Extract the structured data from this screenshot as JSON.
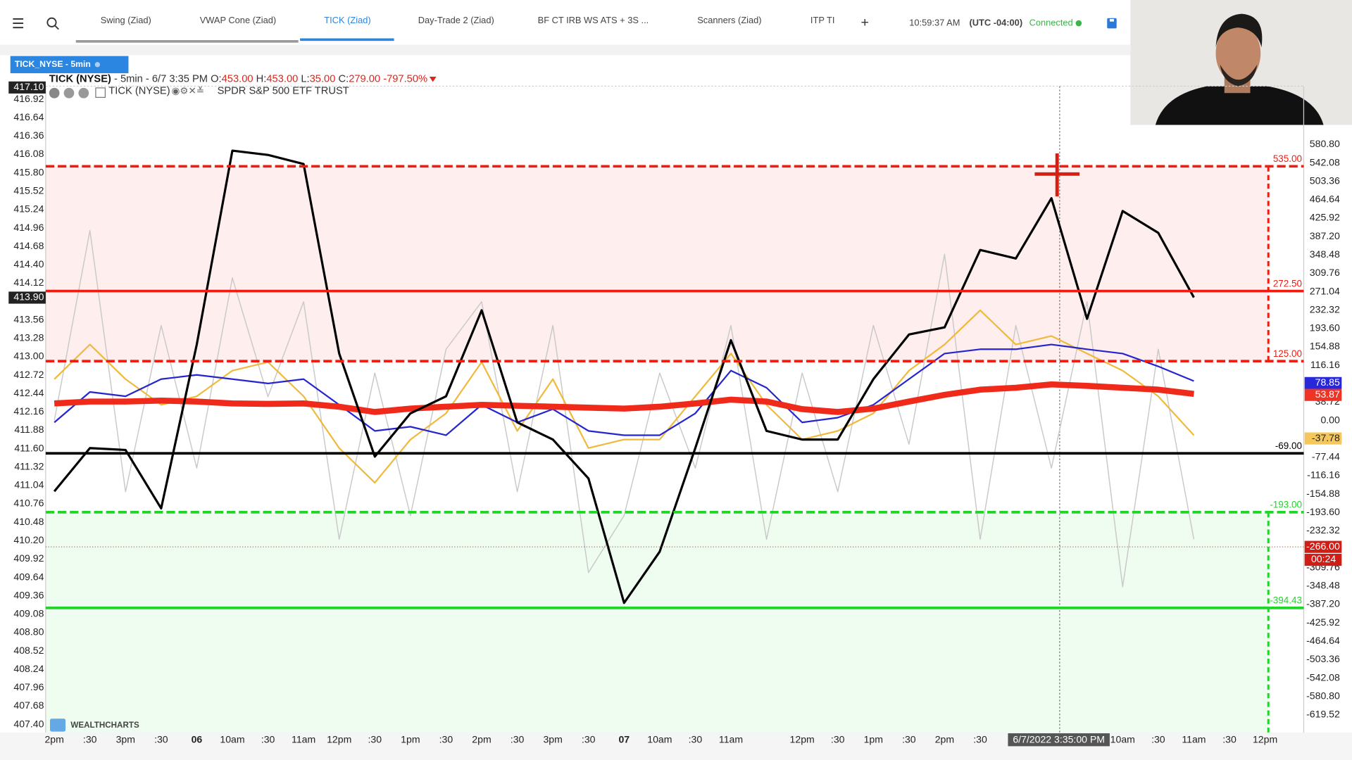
{
  "header": {
    "tabs": [
      "Swing (Ziad)",
      "VWAP Cone (Ziad)",
      "TICK (Ziad)",
      "Day-Trade 2 (Ziad)",
      "BF CT IRB WS ATS + 3S ...",
      "Scanners (Ziad)",
      "ITP TI"
    ],
    "active_tab": 2,
    "time": "10:59:37 AM",
    "timezone": "(UTC -04:00)",
    "status": "Connected"
  },
  "panel": {
    "tag": "TICK_NYSE - 5min",
    "symbol": "TICK (NYSE)",
    "info": " - 5min - 6/7 3:35 PM",
    "ohlc": [
      {
        "label": " O:",
        "value": "453.00"
      },
      {
        "label": " H:",
        "value": "453.00"
      },
      {
        "label": " L:",
        "value": "35.00"
      },
      {
        "label": " C:",
        "value": "279.00"
      }
    ],
    "change": " -797.50%",
    "indicator": "TICK (NYSE)",
    "overlay": "SPDR S&P 500 ETF TRUST",
    "watermark": "WEALTHCHARTS",
    "crosshair_label": "6/7/2022 3:35:00 PM",
    "countdown": "00:24"
  },
  "chart_data": {
    "type": "line",
    "categories": [
      "2pm",
      ":30",
      "3pm",
      ":30",
      "06",
      "10am",
      ":30",
      "11am",
      "12pm",
      ":30",
      "1pm",
      ":30",
      "2pm",
      ":30",
      "3pm",
      ":30",
      "07",
      "10am",
      ":30",
      "11am",
      null,
      "12pm",
      ":30",
      "1pm",
      ":30",
      "2pm",
      ":30",
      null,
      null,
      null,
      "10am",
      ":30",
      "11am",
      ":30",
      "12pm"
    ],
    "ylim": [
      407.28,
      417.12
    ],
    "yticks": [
      416.92,
      416.64,
      416.36,
      {
        "value": 416.08,
        "label": "416.08"
      },
      {
        "value": 415.8,
        "label": "415.80"
      },
      415.52,
      415.24,
      414.96,
      414.68,
      {
        "value": 414.4,
        "label": "414.40"
      },
      414.12,
      413.56,
      413.28,
      {
        "value": 413,
        "label": "413.00"
      },
      412.72,
      412.44,
      412.16,
      411.88,
      {
        "value": 411.6,
        "label": "411.60"
      },
      411.32,
      411.04,
      410.76,
      410.48,
      {
        "value": 410.2,
        "label": "410.20"
      },
      409.92,
      409.64,
      409.36,
      409.08,
      {
        "value": 408.8,
        "label": "408.80"
      },
      408.52,
      408.24,
      407.96,
      407.68,
      {
        "value": 407.4,
        "label": "407.40"
      }
    ],
    "y2lim": [
      -656.5,
      703.7
    ],
    "y2ticks": [
      {
        "value": 580.8,
        "label": "580.80"
      },
      542.08,
      503.36,
      464.64,
      425.92,
      {
        "value": 387.2,
        "label": "387.20"
      },
      348.48,
      309.76,
      271.04,
      232.32,
      {
        "value": 193.6,
        "label": "193.60"
      },
      154.88,
      116.16,
      38.72,
      {
        "value": 0,
        "label": "0.00"
      },
      -77.44,
      -116.16,
      -154.88,
      {
        "value": -193.6,
        "label": "-193.60"
      },
      -232.32,
      -309.76,
      -348.48,
      {
        "value": -387.2,
        "label": "-387.20"
      },
      -425.92,
      -464.64,
      -503.36,
      -542.08,
      {
        "value": -580.8,
        "label": "-580.80"
      },
      -619.52
    ],
    "levels": [
      {
        "value": 535,
        "label": "535.00",
        "color": "#f01c10",
        "dashed": true
      },
      {
        "value": 272.5,
        "label": "272.50",
        "color": "#f01c10",
        "dashed": false
      },
      {
        "value": 125,
        "label": "125.00",
        "color": "#f01c10",
        "dashed": true
      },
      {
        "value": -69,
        "label": "-69.00",
        "color": "#000000",
        "dashed": false
      },
      {
        "value": -193,
        "label": "-193.00",
        "color": "#22d42a",
        "dashed": true
      },
      {
        "value": -394.43,
        "label": "-394.43",
        "color": "#22d42a",
        "dashed": false
      }
    ],
    "left_markers": [
      {
        "value": 417.1,
        "label": "417.10"
      },
      {
        "value": 413.9,
        "label": "413.90"
      }
    ],
    "right_markers": [
      {
        "value": 78.85,
        "label": "78.85",
        "color": "#2828d8",
        "text_color": "#ffffff"
      },
      {
        "value": 53.87,
        "label": "53.87",
        "color": "#ef3324",
        "text_color": "#ffffff"
      },
      {
        "value": -37.78,
        "label": "-37.78",
        "color": "#f5c75a",
        "text_color": "#222222"
      },
      {
        "value": -266,
        "label": "-266.00",
        "color": "#d01e16",
        "text_color": "#ffffff"
      }
    ],
    "series": [
      {
        "color": "#c9c9c9",
        "line_width": 1.2,
        "axis": "y2",
        "values": [
          0,
          400,
          -150,
          200,
          -100,
          300,
          50,
          250,
          -250,
          100,
          -200,
          150,
          250,
          -150,
          200,
          -320,
          -200,
          100,
          -100,
          200,
          -250,
          100,
          -150,
          200,
          -50,
          350,
          -250,
          200,
          -100,
          250,
          -350,
          150,
          -250,
          null,
          null
        ]
      },
      {
        "color": "#f0b93a",
        "line_width": 1.8,
        "axis": "y2",
        "values": [
          87,
          160,
          87,
          33,
          51,
          105,
          123,
          51,
          -58,
          -131,
          -40,
          15,
          123,
          -22,
          87,
          -58,
          -40,
          -40,
          51,
          141,
          33,
          -40,
          -22,
          15,
          105,
          160,
          232,
          160,
          178,
          141,
          105,
          51,
          -31,
          null,
          null
        ]
      },
      {
        "color": "#2525d0",
        "line_width": 1.8,
        "axis": "y2",
        "values": [
          -4,
          60,
          51,
          87,
          96,
          87,
          78,
          87,
          33,
          -22,
          -13,
          -31,
          33,
          -4,
          24,
          -22,
          -31,
          -31,
          15,
          105,
          69,
          -4,
          6,
          33,
          87,
          141,
          150,
          150,
          160,
          150,
          141,
          114,
          83,
          null,
          null
        ]
      },
      {
        "color": "#f02a1a",
        "line_width": 7,
        "axis": "y2",
        "values": [
          36,
          40,
          40,
          42,
          40,
          36,
          35,
          36,
          29,
          18,
          25,
          29,
          33,
          31,
          29,
          27,
          25,
          29,
          36,
          44,
          40,
          24,
          18,
          25,
          40,
          54,
          65,
          69,
          76,
          73,
          69,
          65,
          56,
          null,
          null
        ]
      },
      {
        "color": "#000000",
        "line_width": 2.6,
        "axis": "y2",
        "values": [
          -149,
          -58,
          -62,
          -185,
          160,
          568,
          559,
          540,
          141,
          -76,
          15,
          51,
          232,
          -4,
          -40,
          -122,
          -384,
          -276,
          -58,
          169,
          -22,
          -40,
          -40,
          87,
          181,
          196,
          359,
          341,
          468,
          214,
          441,
          395,
          259,
          null,
          null
        ]
      }
    ]
  }
}
